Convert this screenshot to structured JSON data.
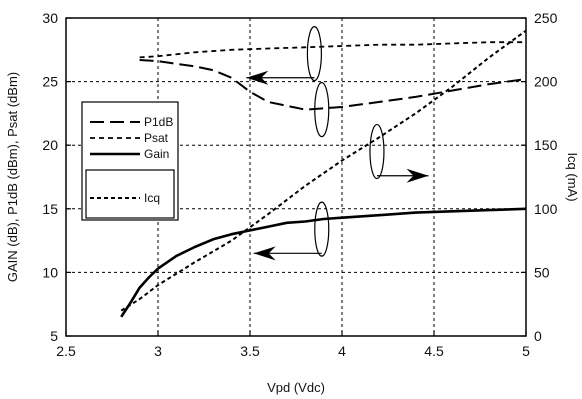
{
  "chart_data": {
    "type": "line",
    "xlabel": "Vpd (Vdc)",
    "ylabel": "GAIN (dB), P1dB (dBm), Psat (dBm)",
    "y2label": "Icq (mA)",
    "xlim": [
      2.5,
      5
    ],
    "ylim": [
      5,
      30
    ],
    "y2lim": [
      0,
      250
    ],
    "xticks": [
      "2.5",
      "3",
      "3.5",
      "4",
      "4.5",
      "5"
    ],
    "yticks": [
      "5",
      "10",
      "15",
      "20",
      "25",
      "30"
    ],
    "y2ticks": [
      "0",
      "50",
      "100",
      "150",
      "200",
      "250"
    ],
    "grid": true,
    "legend": {
      "placement": "center-left",
      "entries": [
        "P1dB",
        "Psat",
        "Gain",
        "Icq"
      ]
    },
    "series": [
      {
        "name": "P1dB",
        "axis": "left",
        "style": "long-dash",
        "x": [
          2.9,
          3.0,
          3.1,
          3.2,
          3.3,
          3.4,
          3.5,
          3.6,
          3.7,
          3.8,
          3.9,
          4.0,
          4.2,
          4.4,
          4.6,
          4.8,
          5.0
        ],
        "y": [
          26.7,
          26.6,
          26.4,
          26.2,
          25.9,
          25.3,
          24.2,
          23.4,
          23.1,
          22.8,
          22.9,
          23.0,
          23.4,
          23.8,
          24.3,
          24.8,
          25.2
        ]
      },
      {
        "name": "Psat",
        "axis": "left",
        "style": "short-dash",
        "x": [
          2.9,
          3.0,
          3.2,
          3.4,
          3.6,
          3.8,
          4.0,
          4.2,
          4.4,
          4.6,
          4.8,
          5.0
        ],
        "y": [
          26.9,
          27.0,
          27.3,
          27.5,
          27.6,
          27.7,
          27.8,
          27.9,
          27.9,
          28.0,
          28.1,
          28.1
        ]
      },
      {
        "name": "Gain",
        "axis": "left",
        "style": "solid",
        "x": [
          2.8,
          2.85,
          2.9,
          2.95,
          3.0,
          3.1,
          3.2,
          3.3,
          3.4,
          3.5,
          3.6,
          3.7,
          3.8,
          3.9,
          4.0,
          4.2,
          4.4,
          4.6,
          4.8,
          5.0
        ],
        "y": [
          6.5,
          7.6,
          8.8,
          9.6,
          10.3,
          11.3,
          12.0,
          12.6,
          13.0,
          13.3,
          13.6,
          13.9,
          14.0,
          14.2,
          14.3,
          14.5,
          14.7,
          14.8,
          14.9,
          15.0
        ]
      },
      {
        "name": "Icq",
        "axis": "right",
        "style": "dotted",
        "x": [
          2.8,
          2.9,
          3.0,
          3.2,
          3.4,
          3.6,
          3.8,
          4.0,
          4.2,
          4.4,
          4.6,
          4.8,
          5.0
        ],
        "y": [
          20,
          29,
          40,
          58,
          75,
          96,
          118,
          138,
          156,
          175,
          196,
          219,
          240
        ]
      }
    ]
  }
}
